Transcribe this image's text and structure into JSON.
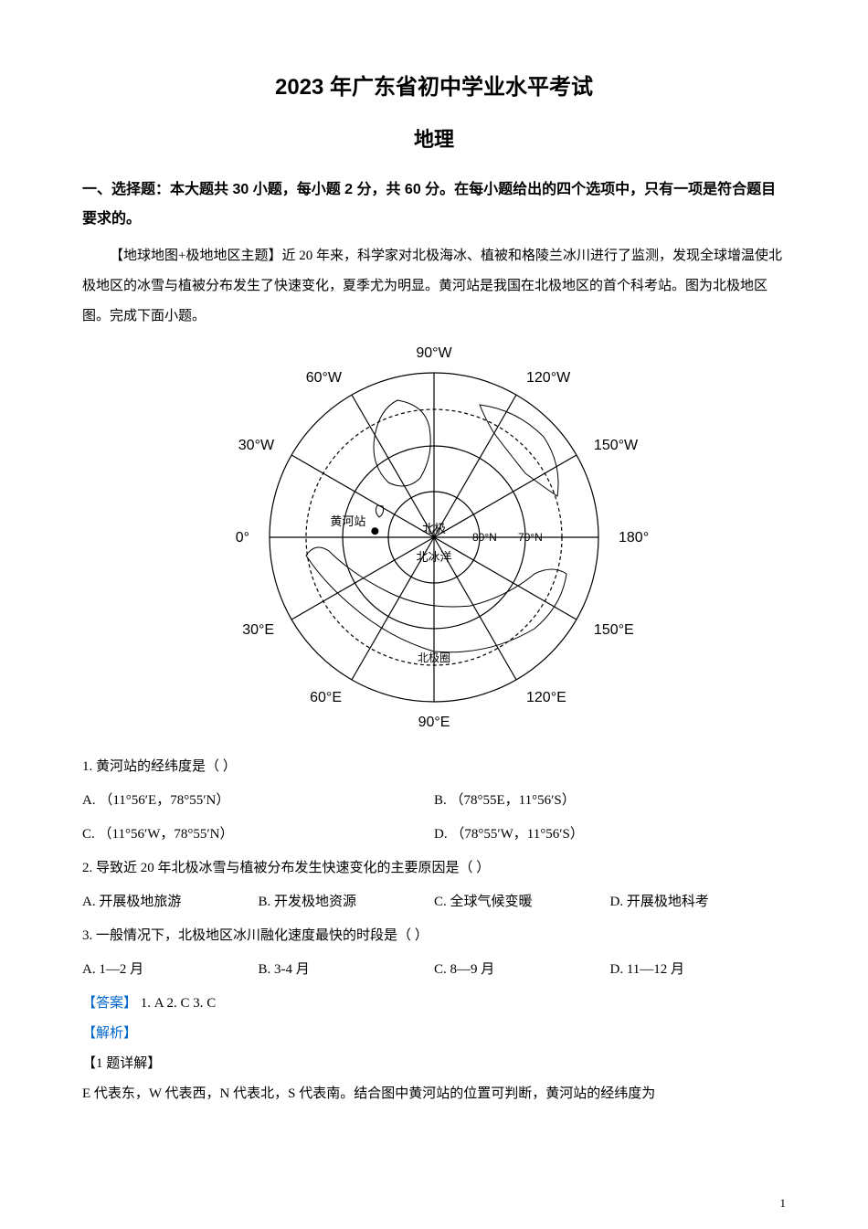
{
  "header": {
    "title_main": "2023 年广东省初中学业水平考试",
    "title_sub": "地理"
  },
  "section": {
    "instruction": "一、选择题：本大题共 30 小题，每小题 2 分，共 60 分。在每小题给出的四个选项中，只有一项是符合题目要求的。"
  },
  "passage": {
    "text": "【地球地图+极地地区主题】近 20 年来，科学家对北极海冰、植被和格陵兰冰川进行了监测，发现全球增温使北极地区的冰雪与植被分布发生了快速变化，夏季尤为明显。黄河站是我国在北极地区的首个科考站。图为北极地区图。完成下面小题。"
  },
  "figure": {
    "type": "map",
    "projection": "polar",
    "center_label": "北极",
    "ocean_label": "北冰洋",
    "circle_label": "北极圈",
    "station_label": "黄河站",
    "latitude_labels": [
      "80°N",
      "70°N"
    ],
    "longitude_labels": [
      "90°W",
      "60°W",
      "30°W",
      "0°",
      "30°E",
      "60°E",
      "90°E",
      "120°E",
      "150°E",
      "180°",
      "150°W",
      "120°W"
    ],
    "background_color": "#ffffff",
    "line_color": "#000000",
    "text_color": "#000000",
    "outer_radius": 180,
    "inner_radius": 140,
    "lat80_radius": 50,
    "lat70_radius": 100,
    "station_position": {
      "angle_deg": 186,
      "radius": 65
    }
  },
  "questions": [
    {
      "number": "1.",
      "stem": "黄河站的经纬度是（    ）",
      "options": [
        {
          "label": "A.",
          "text": "（11°56′E，78°55′N）"
        },
        {
          "label": "B.",
          "text": "（78°55E，11°56′S）"
        },
        {
          "label": "C.",
          "text": "（11°56′W，78°55′N）"
        },
        {
          "label": "D.",
          "text": "（78°55′W，11°56′S）"
        }
      ],
      "layout": 2
    },
    {
      "number": "2.",
      "stem": "导致近 20 年北极冰雪与植被分布发生快速变化的主要原因是（    ）",
      "options": [
        {
          "label": "A.",
          "text": "开展极地旅游"
        },
        {
          "label": "B.",
          "text": "开发极地资源"
        },
        {
          "label": "C.",
          "text": "全球气候变暖"
        },
        {
          "label": "D.",
          "text": "开展极地科考"
        }
      ],
      "layout": 4
    },
    {
      "number": "3.",
      "stem": "一般情况下，北极地区冰川融化速度最快的时段是（    ）",
      "options": [
        {
          "label": "A.",
          "text": "1—2 月"
        },
        {
          "label": "B.",
          "text": "3-4 月"
        },
        {
          "label": "C.",
          "text": "8—9 月"
        },
        {
          "label": "D.",
          "text": "11—12 月"
        }
      ],
      "layout": 4
    }
  ],
  "answers": {
    "label": "【答案】",
    "items": [
      "1. A",
      "2. C",
      "3. C"
    ]
  },
  "analysis": {
    "label": "【解析】",
    "detail_header": "【1 题详解】",
    "explanation": "E 代表东，W 代表西，N 代表北，S 代表南。结合图中黄河站的位置可判断，黄河站的经纬度为"
  },
  "page_number": "1"
}
